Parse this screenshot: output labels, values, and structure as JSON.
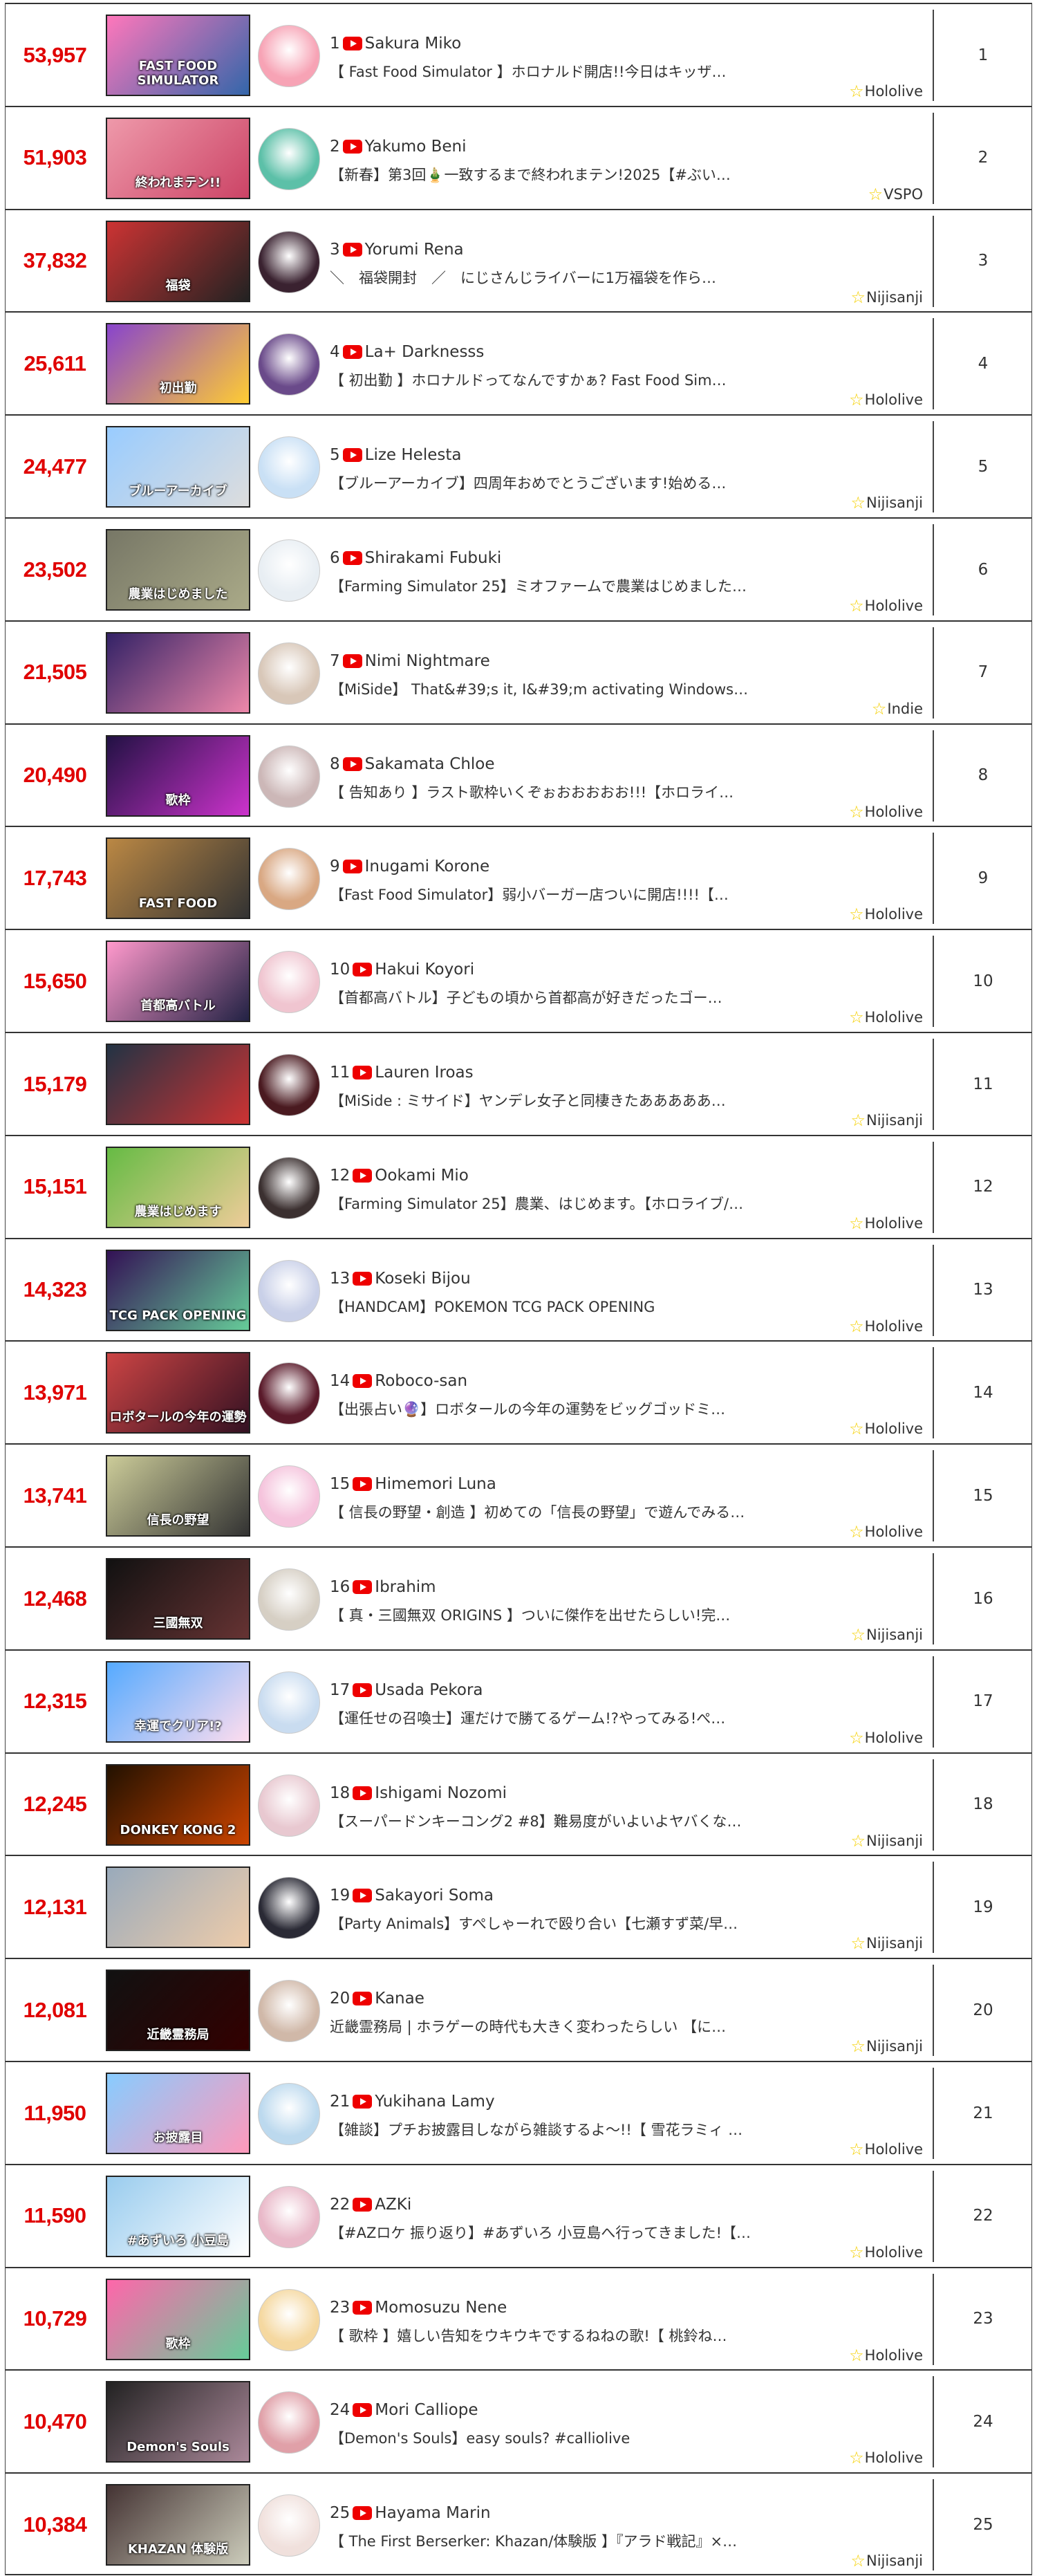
{
  "colors": {
    "views": "#e00000",
    "youtube": "#ee0000",
    "star": "#f5d000"
  },
  "icons": {
    "platform": "youtube-icon",
    "group": "star-outline-icon"
  },
  "rows": [
    {
      "views": "53,957",
      "no": "1",
      "name": "Sakura Miko",
      "title": "【 Fast Food Simulator 】ホロナルド開店!!今日はキッザ…",
      "group": "Hololive",
      "rank": "1",
      "thumb_text": "FAST FOOD SIMULATOR"
    },
    {
      "views": "51,903",
      "no": "2",
      "name": "Yakumo Beni",
      "title": "【新春】第3回🎍一致するまで終われまテン!2025【#ぶい…",
      "group": "VSPO",
      "rank": "2",
      "thumb_text": "終われまテン!!"
    },
    {
      "views": "37,832",
      "no": "3",
      "name": "Yorumi Rena",
      "title": "＼　福袋開封　／　にじさんじライバーに1万福袋を作ら…",
      "group": "Nijisanji",
      "rank": "3",
      "thumb_text": "福袋"
    },
    {
      "views": "25,611",
      "no": "4",
      "name": "La+ Darknesss",
      "title": "【 初出勤 】ホロナルドってなんですかぁ? Fast Food Sim…",
      "group": "Hololive",
      "rank": "4",
      "thumb_text": "初出勤"
    },
    {
      "views": "24,477",
      "no": "5",
      "name": "Lize Helesta",
      "title": "【ブルーアーカイブ】四周年おめでとうございます!始める…",
      "group": "Nijisanji",
      "rank": "5",
      "thumb_text": "ブルーアーカイブ"
    },
    {
      "views": "23,502",
      "no": "6",
      "name": "Shirakami Fubuki",
      "title": "【Farming Simulator 25】ミオファームで農業はじめました…",
      "group": "Hololive",
      "rank": "6",
      "thumb_text": "農業はじめました"
    },
    {
      "views": "21,505",
      "no": "7",
      "name": "Nimi Nightmare",
      "title": "【MiSide】 That&#39;s it, I&#39;m activating Windows…",
      "group": "Indie",
      "rank": "7",
      "thumb_text": ""
    },
    {
      "views": "20,490",
      "no": "8",
      "name": "Sakamata Chloe",
      "title": "【 告知あり 】ラスト歌枠いくぞぉおおおおお!!!【ホロライ…",
      "group": "Hololive",
      "rank": "8",
      "thumb_text": "歌枠"
    },
    {
      "views": "17,743",
      "no": "9",
      "name": "Inugami Korone",
      "title": "【Fast Food Simulator】弱小バーガー店ついに開店!!!!【…",
      "group": "Hololive",
      "rank": "9",
      "thumb_text": "FAST FOOD"
    },
    {
      "views": "15,650",
      "no": "10",
      "name": "Hakui Koyori",
      "title": "【首都高バトル】子どもの頃から首都高が好きだったゴー…",
      "group": "Hololive",
      "rank": "10",
      "thumb_text": "首都高バトル"
    },
    {
      "views": "15,179",
      "no": "11",
      "name": "Lauren Iroas",
      "title": "【MiSide : ミサイド】ヤンデレ女子と同棲きたあああああ…",
      "group": "Nijisanji",
      "rank": "11",
      "thumb_text": ""
    },
    {
      "views": "15,151",
      "no": "12",
      "name": "Ookami Mio",
      "title": "【Farming Simulator 25】農業、はじめます。【ホロライブ/…",
      "group": "Hololive",
      "rank": "12",
      "thumb_text": "農業はじめます"
    },
    {
      "views": "14,323",
      "no": "13",
      "name": "Koseki Bijou",
      "title": "【HANDCAM】POKEMON TCG PACK OPENING",
      "group": "Hololive",
      "rank": "13",
      "thumb_text": "TCG PACK OPENING"
    },
    {
      "views": "13,971",
      "no": "14",
      "name": "Roboco-san",
      "title": "【出張占い🔮】ロボタールの今年の運勢をビッグゴッドミ…",
      "group": "Hololive",
      "rank": "14",
      "thumb_text": "ロボタールの今年の運勢"
    },
    {
      "views": "13,741",
      "no": "15",
      "name": "Himemori Luna",
      "title": "【 信長の野望・創造 】初めての「信長の野望」で遊んでみる…",
      "group": "Hololive",
      "rank": "15",
      "thumb_text": "信長の野望"
    },
    {
      "views": "12,468",
      "no": "16",
      "name": "Ibrahim",
      "title": "【 真・三國無双 ORIGINS 】ついに傑作を出せたらしい!完…",
      "group": "Nijisanji",
      "rank": "16",
      "thumb_text": "三國無双"
    },
    {
      "views": "12,315",
      "no": "17",
      "name": "Usada Pekora",
      "title": "【運任せの召喚士】運だけで勝てるゲーム!?やってみる!ぺ…",
      "group": "Hololive",
      "rank": "17",
      "thumb_text": "幸運でクリア!?"
    },
    {
      "views": "12,245",
      "no": "18",
      "name": "Ishigami Nozomi",
      "title": "【スーパードンキーコング2 #8】難易度がいよいよヤバくな…",
      "group": "Nijisanji",
      "rank": "18",
      "thumb_text": "DONKEY KONG 2"
    },
    {
      "views": "12,131",
      "no": "19",
      "name": "Sakayori Soma",
      "title": "【Party Animals】すぺしゃーれで殴り合い【七瀬すず菜/早…",
      "group": "Nijisanji",
      "rank": "19",
      "thumb_text": ""
    },
    {
      "views": "12,081",
      "no": "20",
      "name": "Kanae",
      "title": "近畿霊務局 | ホラゲーの時代も大きく変わったらしい 【に…",
      "group": "Nijisanji",
      "rank": "20",
      "thumb_text": "近畿霊務局"
    },
    {
      "views": "11,950",
      "no": "21",
      "name": "Yukihana Lamy",
      "title": "【雑談】プチお披露目しながら雑談するよ～!!【 雪花ラミィ …",
      "group": "Hololive",
      "rank": "21",
      "thumb_text": "お披露目"
    },
    {
      "views": "11,590",
      "no": "22",
      "name": "AZKi",
      "title": "【#AZロケ 振り返り】#あずいろ 小豆島へ行ってきました!【…",
      "group": "Hololive",
      "rank": "22",
      "thumb_text": "#あずいろ 小豆島"
    },
    {
      "views": "10,729",
      "no": "23",
      "name": "Momosuzu Nene",
      "title": "【 歌枠 】嬉しい告知をウキウキでするねねの歌!【 桃鈴ね…",
      "group": "Hololive",
      "rank": "23",
      "thumb_text": "歌枠"
    },
    {
      "views": "10,470",
      "no": "24",
      "name": "Mori Calliope",
      "title": "【Demon's Souls】easy souls? #calliolive",
      "group": "Hololive",
      "rank": "24",
      "thumb_text": "Demon's Souls"
    },
    {
      "views": "10,384",
      "no": "25",
      "name": "Hayama Marin",
      "title": "【 The First Berserker: Khazan/体験版 】『アラド戦記』×…",
      "group": "Nijisanji",
      "rank": "25",
      "thumb_text": "KHAZAN 体験版"
    }
  ]
}
